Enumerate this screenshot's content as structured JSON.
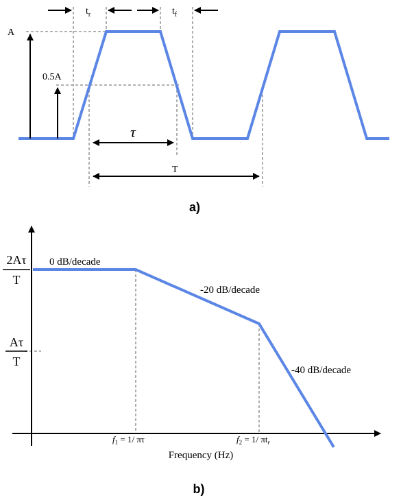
{
  "colors": {
    "signal": "#5b86e5",
    "guide": "#a6a6a6",
    "ink": "#000000"
  },
  "panel_a": {
    "caption": "a)",
    "label_A": "A",
    "label_half_A": "0.5A",
    "label_tr_main": "t",
    "label_tr_sub": "r",
    "label_tf_main": "t",
    "label_tf_sub": "f",
    "label_tau": "τ",
    "label_T": "T"
  },
  "panel_b": {
    "caption": "b)",
    "y_tick_high_num": "2Aτ",
    "y_tick_high_den": "T",
    "y_tick_low_num": "Aτ",
    "y_tick_low_den": "T",
    "slope_0": "0 dB/decade",
    "slope_20": "-20 dB/decade",
    "slope_40": "-40 dB/decade",
    "f1_f": "f",
    "f1_sub": "1",
    "f1_eq": " = 1/ πτ",
    "f2_f": "f",
    "f2_sub": "2",
    "f2_eq": " = 1/ πt",
    "f2_tsub": "r",
    "x_axis_label": "Frequency (Hz)"
  }
}
